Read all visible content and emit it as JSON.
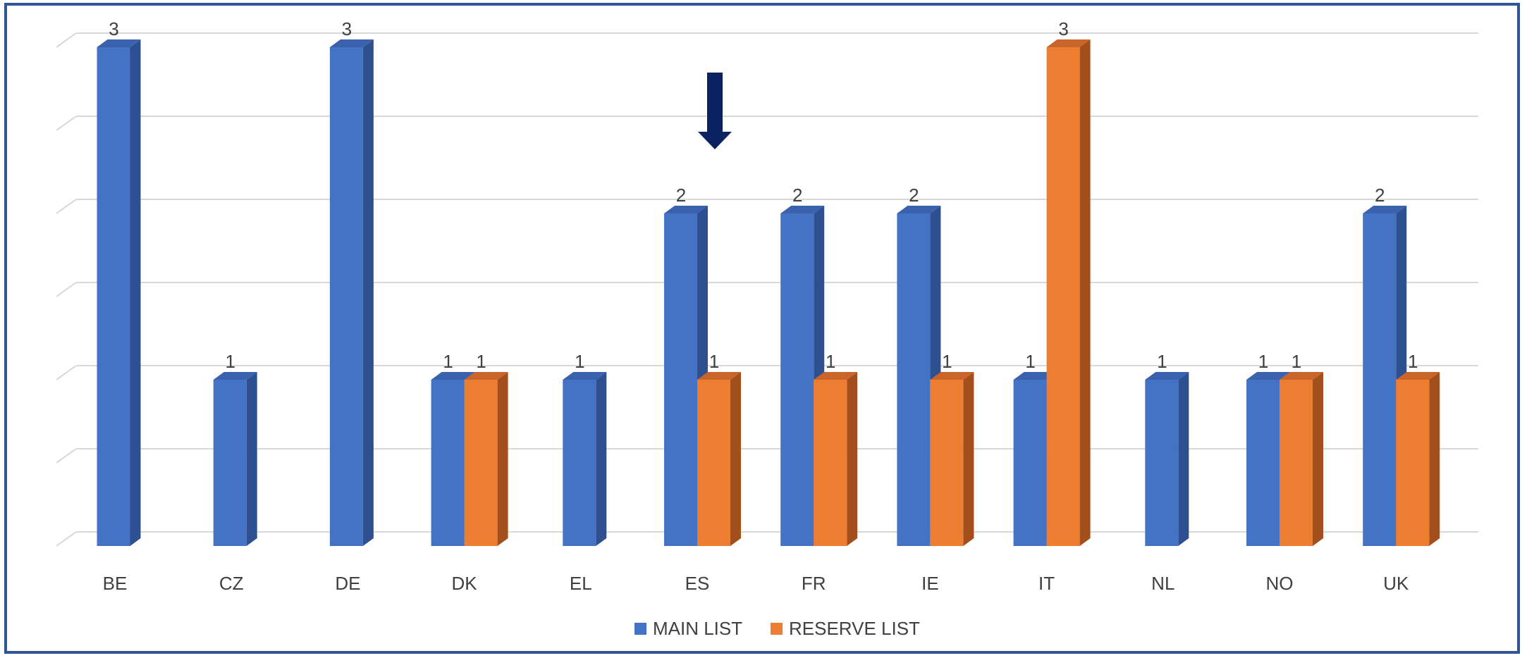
{
  "chart_data": {
    "type": "bar",
    "categories": [
      "BE",
      "CZ",
      "DE",
      "DK",
      "EL",
      "ES",
      "FR",
      "IE",
      "IT",
      "NL",
      "NO",
      "UK"
    ],
    "series": [
      {
        "name": "MAIN LIST",
        "values": [
          3,
          1,
          3,
          1,
          1,
          2,
          2,
          2,
          1,
          1,
          1,
          2
        ]
      },
      {
        "name": "RESERVE LIST",
        "values": [
          null,
          null,
          null,
          1,
          null,
          1,
          1,
          1,
          3,
          null,
          1,
          1
        ]
      }
    ],
    "ylim": [
      0,
      3
    ],
    "grid": true,
    "legend_position": "bottom",
    "annotation": {
      "type": "arrow",
      "target_category": "ES",
      "direction": "down"
    }
  },
  "colors": {
    "main_front": "#4472C4",
    "main_side": "#2F5090",
    "main_top": "#3A62AE",
    "reserve_front": "#ED7D31",
    "reserve_side": "#A34F1C",
    "reserve_top": "#C9652A",
    "arrow": "#0B2260",
    "grid": "#D9D9D9",
    "text": "#404040",
    "border": "#2F5597"
  }
}
